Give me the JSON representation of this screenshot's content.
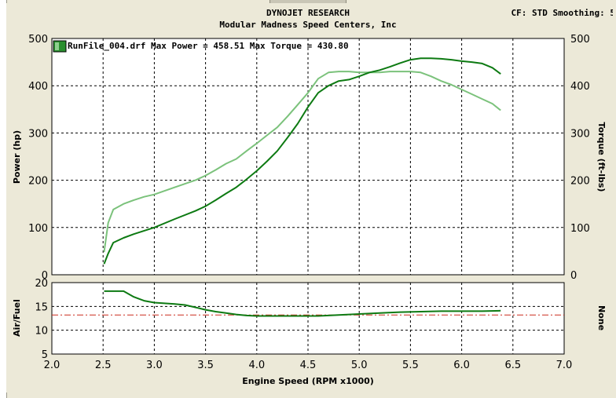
{
  "header": {
    "title": "DYNOJET RESEARCH",
    "subtitle": "Modular Madness Speed Centers, Inc",
    "settings": "CF: STD  Smoothing: 5"
  },
  "chart_data": [
    {
      "type": "line",
      "legend": "RunFile_004.drf Max Power = 458.51 Max Torque = 430.80",
      "xlabel": "Engine Speed (RPM x1000)",
      "ylabel": "Power (hp)",
      "y2label": "Torque (ft-lbs)",
      "xlim": [
        2.0,
        7.0
      ],
      "ylim": [
        0,
        500
      ],
      "y2lim": [
        0,
        500
      ],
      "xticks": [
        "2.0",
        "2.5",
        "3.0",
        "3.5",
        "4.0",
        "4.5",
        "5.0",
        "5.5",
        "6.0",
        "6.5",
        "7.0"
      ],
      "yticks": [
        "0",
        "100",
        "200",
        "300",
        "400",
        "500"
      ],
      "y2ticks": [
        "0",
        "100",
        "200",
        "300",
        "400",
        "500"
      ],
      "grid": true,
      "series": [
        {
          "name": "Power",
          "color": "#0d7a12",
          "x": [
            2.51,
            2.55,
            2.6,
            2.7,
            2.8,
            3.0,
            3.2,
            3.4,
            3.5,
            3.6,
            3.7,
            3.8,
            3.9,
            4.0,
            4.1,
            4.2,
            4.3,
            4.4,
            4.5,
            4.6,
            4.7,
            4.8,
            4.9,
            5.0,
            5.1,
            5.2,
            5.3,
            5.4,
            5.5,
            5.6,
            5.7,
            5.8,
            5.9,
            6.0,
            6.1,
            6.2,
            6.3,
            6.38
          ],
          "y": [
            23,
            45,
            68,
            78,
            86,
            100,
            118,
            135,
            145,
            158,
            172,
            185,
            202,
            220,
            240,
            262,
            290,
            320,
            355,
            385,
            400,
            410,
            413,
            420,
            428,
            433,
            440,
            448,
            455,
            458,
            458,
            457,
            455,
            452,
            450,
            447,
            438,
            425
          ]
        },
        {
          "name": "Torque",
          "color": "#7bc27b",
          "x": [
            2.51,
            2.55,
            2.6,
            2.7,
            2.8,
            2.9,
            3.0,
            3.2,
            3.4,
            3.5,
            3.6,
            3.7,
            3.8,
            3.9,
            4.0,
            4.1,
            4.2,
            4.3,
            4.4,
            4.5,
            4.6,
            4.7,
            4.8,
            4.9,
            5.0,
            5.1,
            5.2,
            5.3,
            5.4,
            5.5,
            5.6,
            5.7,
            5.8,
            5.9,
            6.0,
            6.1,
            6.2,
            6.3,
            6.38
          ],
          "y": [
            48,
            110,
            138,
            150,
            158,
            165,
            170,
            185,
            200,
            210,
            222,
            235,
            245,
            262,
            278,
            295,
            312,
            335,
            360,
            385,
            415,
            428,
            430,
            430,
            428,
            428,
            428,
            430,
            430,
            430,
            428,
            420,
            410,
            402,
            392,
            382,
            372,
            362,
            348
          ]
        }
      ]
    },
    {
      "type": "line",
      "xlabel": "Engine Speed (RPM x1000)",
      "ylabel": "Air/Fuel",
      "y2label": "None",
      "xlim": [
        2.0,
        7.0
      ],
      "ylim": [
        5,
        20
      ],
      "yticks": [
        "5",
        "10",
        "15",
        "20"
      ],
      "grid": true,
      "reference_line": 13.2,
      "reference_color": "#cc2b1d",
      "series": [
        {
          "name": "Air/Fuel",
          "color": "#0d7a12",
          "x": [
            2.51,
            2.7,
            2.8,
            2.9,
            3.0,
            3.2,
            3.3,
            3.4,
            3.5,
            3.6,
            3.7,
            3.8,
            3.9,
            4.0,
            4.2,
            4.4,
            4.6,
            4.8,
            5.0,
            5.2,
            5.4,
            5.6,
            5.8,
            6.0,
            6.2,
            6.38
          ],
          "y": [
            18.2,
            18.2,
            17.0,
            16.2,
            15.8,
            15.5,
            15.3,
            14.8,
            14.3,
            13.9,
            13.6,
            13.3,
            13.1,
            13.0,
            13.0,
            13.0,
            13.0,
            13.2,
            13.4,
            13.6,
            13.8,
            13.9,
            14.0,
            14.0,
            14.0,
            14.1
          ]
        }
      ]
    }
  ]
}
